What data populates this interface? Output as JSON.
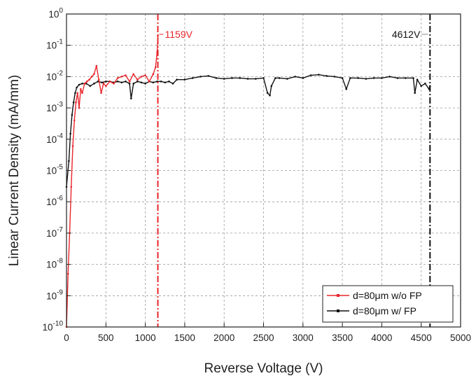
{
  "chart_data": {
    "type": "line",
    "title": "",
    "xlabel": "Reverse Voltage (V)",
    "ylabel": "Linear Current Density (mA/mm)",
    "xlim": [
      0,
      5000
    ],
    "ylim": [
      1e-10,
      1
    ],
    "y_scale": "log",
    "grid": true,
    "legend_position": "bottom-right",
    "x_ticks": [
      0,
      500,
      1000,
      1500,
      2000,
      2500,
      3000,
      3500,
      4000,
      4500,
      5000
    ],
    "x_tick_labels": [
      "0",
      "500",
      "1000",
      "1500",
      "2000",
      "2500",
      "3000",
      "3500",
      "4000",
      "4500",
      "5000"
    ],
    "y_ticks": [
      1e-10,
      1e-09,
      1e-08,
      1e-07,
      1e-06,
      1e-05,
      0.0001,
      0.001,
      0.01,
      0.1,
      1
    ],
    "y_tick_labels": [
      {
        "base": "10",
        "exp": "-10"
      },
      {
        "base": "10",
        "exp": "-9"
      },
      {
        "base": "10",
        "exp": "-8"
      },
      {
        "base": "10",
        "exp": "-7"
      },
      {
        "base": "10",
        "exp": "-6"
      },
      {
        "base": "10",
        "exp": "-5"
      },
      {
        "base": "10",
        "exp": "-4"
      },
      {
        "base": "10",
        "exp": "-3"
      },
      {
        "base": "10",
        "exp": "-2"
      },
      {
        "base": "10",
        "exp": "-1"
      },
      {
        "base": "10",
        "exp": "0"
      }
    ],
    "series": [
      {
        "name": "d=80μm w/o FP",
        "color": "#e8262b",
        "x": [
          0,
          20,
          40,
          60,
          80,
          100,
          120,
          140,
          160,
          180,
          200,
          230,
          260,
          290,
          320,
          350,
          380,
          410,
          440,
          470,
          500,
          550,
          600,
          650,
          700,
          750,
          800,
          850,
          900,
          950,
          1000,
          1050,
          1100,
          1130,
          1150,
          1159
        ],
        "y": [
          1e-10,
          5e-09,
          1e-07,
          3e-06,
          6e-05,
          0.0004,
          0.0015,
          0.003,
          0.001,
          0.004,
          0.003,
          0.006,
          0.007,
          0.008,
          0.01,
          0.012,
          0.022,
          0.008,
          0.003,
          0.006,
          0.005,
          0.007,
          0.006,
          0.009,
          0.01,
          0.011,
          0.007,
          0.012,
          0.008,
          0.01,
          0.011,
          0.007,
          0.012,
          0.02,
          0.06,
          0.2
        ]
      },
      {
        "name": "d=80μm w/ FP",
        "color": "#111111",
        "x": [
          0,
          30,
          50,
          70,
          90,
          110,
          130,
          160,
          200,
          250,
          300,
          350,
          400,
          450,
          500,
          550,
          600,
          650,
          700,
          750,
          800,
          820,
          850,
          900,
          950,
          1000,
          1050,
          1100,
          1150,
          1200,
          1250,
          1300,
          1350,
          1400,
          1500,
          1600,
          1700,
          1800,
          1900,
          2000,
          2100,
          2200,
          2300,
          2400,
          2500,
          2550,
          2580,
          2600,
          2650,
          2700,
          2800,
          2900,
          3000,
          3100,
          3200,
          3300,
          3400,
          3500,
          3550,
          3600,
          3700,
          3800,
          3900,
          4000,
          4100,
          4200,
          4300,
          4400,
          4420,
          4450,
          4500,
          4550,
          4600,
          4612
        ],
        "y": [
          3e-06,
          2e-05,
          0.00015,
          0.0006,
          0.0015,
          0.003,
          0.0045,
          0.0055,
          0.006,
          0.006,
          0.005,
          0.006,
          0.007,
          0.0065,
          0.007,
          0.007,
          0.0065,
          0.007,
          0.0065,
          0.007,
          0.006,
          0.002,
          0.006,
          0.007,
          0.0065,
          0.006,
          0.007,
          0.0065,
          0.007,
          0.007,
          0.0065,
          0.007,
          0.006,
          0.008,
          0.008,
          0.009,
          0.01,
          0.0105,
          0.009,
          0.0085,
          0.009,
          0.009,
          0.0085,
          0.0085,
          0.009,
          0.003,
          0.0025,
          0.005,
          0.009,
          0.009,
          0.0085,
          0.01,
          0.009,
          0.011,
          0.0115,
          0.0105,
          0.01,
          0.009,
          0.004,
          0.009,
          0.009,
          0.0085,
          0.009,
          0.009,
          0.01,
          0.009,
          0.009,
          0.009,
          0.003,
          0.008,
          0.005,
          0.006,
          0.004,
          0.005
        ]
      }
    ],
    "annotations": [
      {
        "text": "1159V",
        "x": 1159,
        "color": "#e8262b"
      },
      {
        "text": "4612V",
        "x": 4612,
        "color": "#111111"
      }
    ]
  }
}
